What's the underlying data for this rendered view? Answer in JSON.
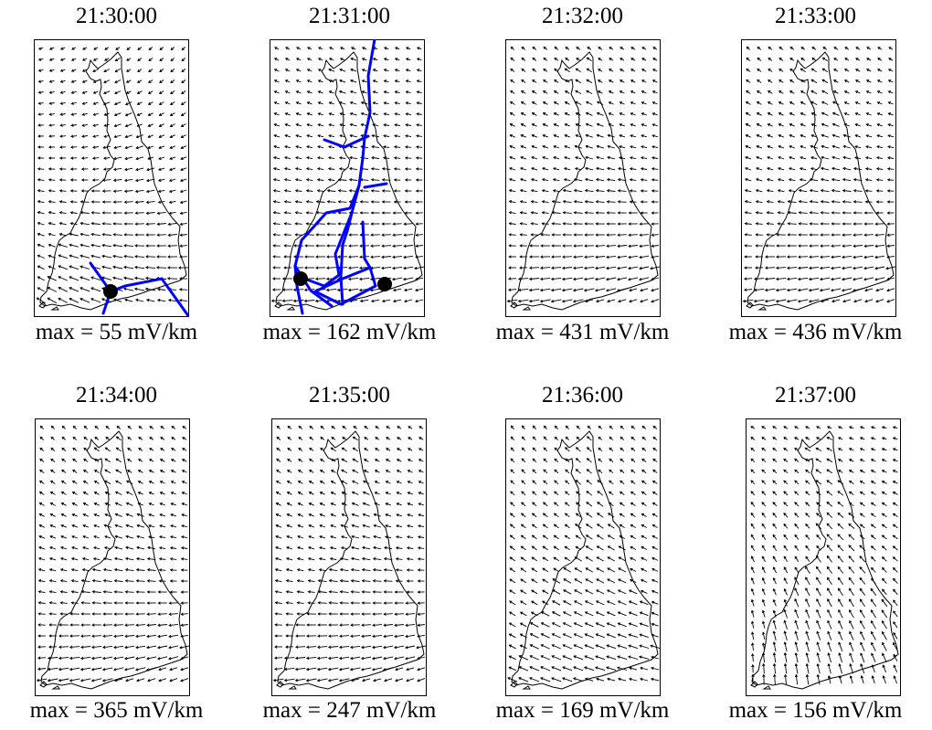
{
  "panels": [
    {
      "time": "21:30:00",
      "caption": "max = 55 mV/km",
      "field_deg": 160,
      "field_dev": 70,
      "field_shape": "swirl",
      "grid_lines": "partial"
    },
    {
      "time": "21:31:00",
      "caption": "max = 162 mV/km",
      "field_deg": 180,
      "field_dev": 35,
      "field_shape": "bend",
      "grid_lines": "full"
    },
    {
      "time": "21:32:00",
      "caption": "max = 431 mV/km",
      "field_deg": 180,
      "field_dev": 55,
      "field_shape": "bend",
      "grid_lines": "none"
    },
    {
      "time": "21:33:00",
      "caption": "max = 436 mV/km",
      "field_deg": 180,
      "field_dev": 55,
      "field_shape": "bend",
      "grid_lines": "none"
    },
    {
      "time": "21:34:00",
      "caption": "max = 365 mV/km",
      "field_deg": 180,
      "field_dev": 60,
      "field_shape": "bend",
      "grid_lines": "none"
    },
    {
      "time": "21:35:00",
      "caption": "max = 247 mV/km",
      "field_deg": 180,
      "field_dev": 55,
      "field_shape": "bend",
      "grid_lines": "none"
    },
    {
      "time": "21:36:00",
      "caption": "max = 169 mV/km",
      "field_deg": 205,
      "field_dev": 30,
      "field_shape": "bend",
      "grid_lines": "none"
    },
    {
      "time": "21:37:00",
      "caption": "max = 156 mV/km",
      "field_deg": 250,
      "field_dev": 60,
      "field_shape": "sweep",
      "grid_lines": "none"
    }
  ],
  "colors": {
    "grid_lines": "#0000ff",
    "arrows": "#000000",
    "coast": "#000000",
    "nodes": "#000000"
  }
}
